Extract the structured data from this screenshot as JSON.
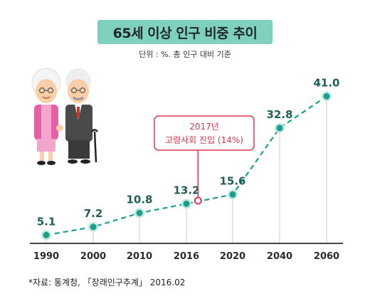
{
  "header": {
    "title": "65세 이상 인구 비중 추이",
    "subtitle": "단위 : %. 총 인구 대비 기준"
  },
  "source": "*자료: 통계청, 「장래인구추계」 2016.02",
  "colors": {
    "title_bg": "#7fd0be",
    "series": "#1aa08c",
    "value_text": "#1f5f55",
    "annotation": "#e0374d"
  },
  "illustration": {
    "icon": "elderly-couple-icon"
  },
  "chart_data": {
    "type": "line",
    "title": "65세 이상 인구 비중 추이",
    "unit": "%",
    "categories": [
      "1990",
      "2000",
      "2010",
      "2016",
      "2020",
      "2040",
      "2060"
    ],
    "values": [
      5.1,
      7.2,
      10.8,
      13.2,
      15.6,
      32.8,
      41.0
    ],
    "value_labels": [
      "5.1",
      "7.2",
      "10.8",
      "13.2",
      "15.6",
      "32.8",
      "41.0"
    ],
    "ylim": [
      0,
      45
    ],
    "grid": false,
    "annotation": {
      "year": 2017,
      "value": 14,
      "line1": "2017년",
      "line2": "고령사회 진입 (14%)"
    }
  }
}
